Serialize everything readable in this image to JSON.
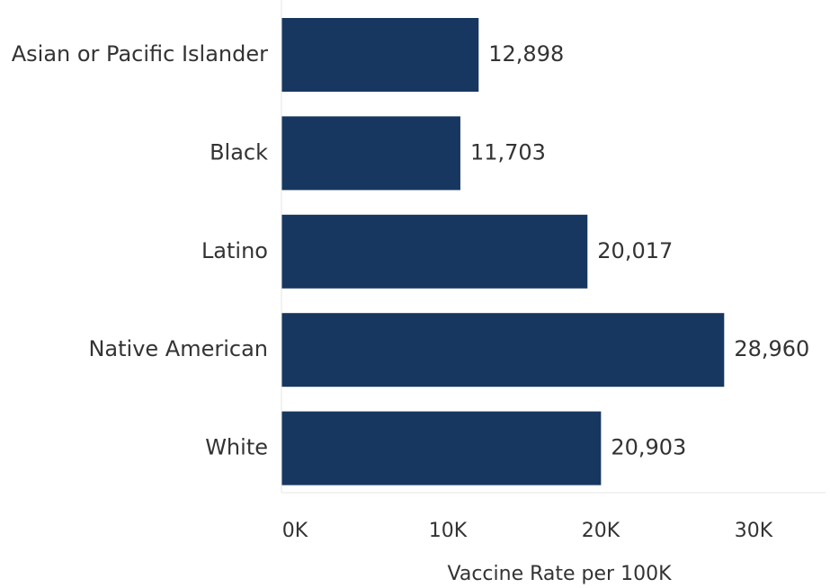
{
  "chart_data": {
    "type": "bar",
    "orientation": "horizontal",
    "categories": [
      "Asian or Pacific Islander",
      "Black",
      "Latino",
      "Native American",
      "White"
    ],
    "values": [
      12898,
      11703,
      20017,
      28960,
      20903
    ],
    "value_labels": [
      "12,898",
      "11,703",
      "20,017",
      "28,960",
      "20,903"
    ],
    "xlabel": "Vaccine Rate per 100K",
    "ylabel": "",
    "xlim": [
      0,
      35000
    ],
    "xticks": [
      0,
      10000,
      20000,
      30000
    ],
    "xtick_labels": [
      "0K",
      "10K",
      "20K",
      "30K"
    ],
    "grid": false,
    "bar_color": "#173760"
  }
}
